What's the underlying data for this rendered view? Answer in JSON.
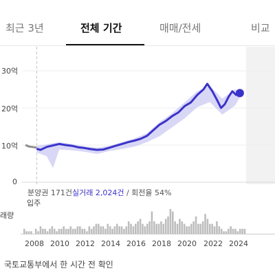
{
  "header_partial": {
    "price_text": ""
  },
  "tabs": [
    {
      "label": "최근 3년",
      "active": false
    },
    {
      "label": "전체 기간",
      "active": true
    },
    {
      "label": "매매/전세",
      "active": false
    },
    {
      "label": "비교",
      "active": false
    }
  ],
  "colors": {
    "accent": "#3a33c9",
    "band": "#b9b6ef",
    "pre_series": "#8e8e8e",
    "volume": "#bdbdbd"
  },
  "chart_data": {
    "type": "line",
    "ylim": [
      0,
      30
    ],
    "xlim": [
      2007.3,
      2024.9
    ],
    "y_ticks": [
      "30억",
      "20억",
      "10억",
      "0"
    ],
    "y_tick_values": [
      30,
      20,
      10,
      0
    ],
    "x_ticks": [
      "2008",
      "2010",
      "2012",
      "2014",
      "2016",
      "2018",
      "2020",
      "2022",
      "2024"
    ],
    "x_tick_values": [
      2008,
      2010,
      2012,
      2014,
      2016,
      2018,
      2020,
      2022,
      2024
    ],
    "vline_x": 2008.2,
    "series": [
      {
        "x": [
          2007.3,
          2007.6,
          2008.0,
          2008.2
        ],
        "y": [
          10.0,
          9.6,
          9.4,
          9.3
        ]
      },
      {
        "x": [
          2008.2,
          2008.5,
          2009.0,
          2009.5,
          2010.0,
          2010.5,
          2011.0,
          2011.5,
          2012.0,
          2012.5,
          2013.0,
          2013.5,
          2014.0,
          2014.5,
          2015.0,
          2015.5,
          2016.0,
          2016.5,
          2017.0,
          2017.5,
          2018.0,
          2018.5,
          2019.0,
          2019.5,
          2020.0,
          2020.5,
          2021.0,
          2021.5,
          2021.8,
          2022.2,
          2022.6,
          2022.9,
          2023.2,
          2023.5,
          2023.8,
          2024.1,
          2024.4
        ],
        "y": [
          9.0,
          8.7,
          9.5,
          9.9,
          10.3,
          10.0,
          9.8,
          9.4,
          9.2,
          8.9,
          8.7,
          8.8,
          9.3,
          9.8,
          10.3,
          10.8,
          11.2,
          11.7,
          12.5,
          14.0,
          15.5,
          16.5,
          17.8,
          18.8,
          20.5,
          21.5,
          23.5,
          25.0,
          26.5,
          24.5,
          22.0,
          20.0,
          21.0,
          23.0,
          24.5,
          23.5,
          24.0
        ]
      }
    ],
    "band": {
      "x": [
        2008.2,
        2009.0,
        2009.5,
        2010.0,
        2011.0,
        2012.0,
        2013.0,
        2014.0,
        2015.0,
        2016.0,
        2017.0,
        2018.0,
        2019.0,
        2020.0,
        2021.0,
        2022.0,
        2023.0,
        2024.0,
        2024.4
      ],
      "upper": [
        9.8,
        10.2,
        10.5,
        10.8,
        10.3,
        9.7,
        9.3,
        9.8,
        10.8,
        11.8,
        13.2,
        16.2,
        18.6,
        21.5,
        24.5,
        26.0,
        22.5,
        25.0,
        24.6
      ],
      "lower": [
        8.0,
        7.0,
        3.8,
        8.8,
        8.6,
        8.2,
        7.6,
        8.4,
        8.9,
        9.6,
        10.8,
        12.4,
        14.8,
        17.2,
        20.2,
        21.6,
        18.2,
        20.6,
        22.8
      ]
    }
  },
  "info": {
    "presale_text": "분양권 171건",
    "trade_text": "실거래 2,024건",
    "turnover_text": " / 회전율 54%"
  },
  "move_in_label": "입주",
  "volume_label": "래량",
  "volume_data": [
    2,
    1,
    1,
    1,
    0,
    2,
    1,
    3,
    2,
    2,
    1,
    2,
    3,
    2,
    1,
    2,
    2,
    3,
    2,
    2,
    3,
    2,
    2,
    3,
    3,
    2,
    2,
    1,
    3,
    2,
    3,
    4,
    4,
    3,
    3,
    2,
    4,
    3,
    2,
    3,
    4,
    3,
    3,
    2,
    3,
    5,
    4,
    3,
    4,
    5,
    6,
    4,
    3,
    4,
    5,
    9,
    5,
    4,
    4,
    5,
    4,
    6,
    7,
    10,
    9,
    5,
    4,
    6,
    5,
    4,
    3,
    3,
    4,
    5,
    7,
    4,
    4,
    5,
    8,
    6,
    4,
    4,
    3,
    5,
    3,
    2,
    1,
    1,
    2,
    3,
    2,
    2,
    1,
    2,
    2,
    2
  ],
  "footer": "국토교통부에서 한 시간 전 확인"
}
